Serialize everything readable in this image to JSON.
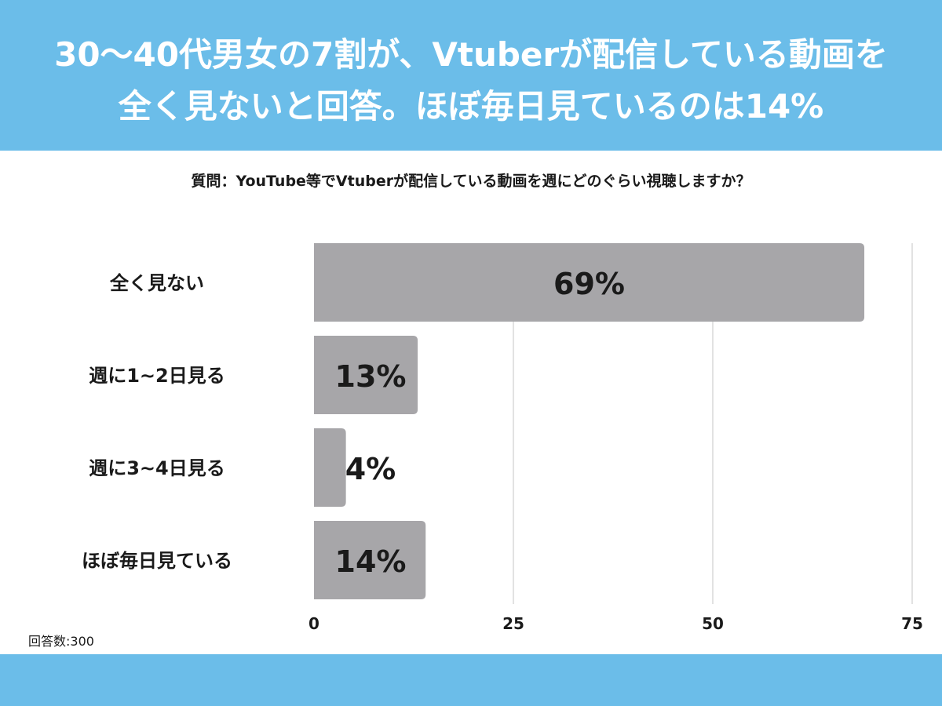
{
  "header": {
    "title_line1": "30～40代男女の7割が、Vtuberが配信している動画を",
    "title_line2": "全く見ないと回答。ほぼ毎日見ているのは14%"
  },
  "question": "質問：YouTube等でVtuberが配信している動画を週にどのぐらい視聴しますか？",
  "footer": {
    "respondents": "回答数:300"
  },
  "colors": {
    "band": "#6bbde9",
    "bar": "#a7a6a9",
    "grid": "#d9d9d9",
    "text": "#1a1a1a"
  },
  "chart_data": {
    "type": "bar",
    "orientation": "horizontal",
    "categories": [
      "全く見ない",
      "週に1~2日見る",
      "週に3~4日見る",
      "ほぼ毎日見ている"
    ],
    "values": [
      69,
      13,
      4,
      14
    ],
    "value_labels": [
      "69%",
      "13%",
      "4%",
      "14%"
    ],
    "xlim": [
      0,
      75
    ],
    "xticks": [
      0,
      25,
      50,
      75
    ],
    "grid": true
  }
}
